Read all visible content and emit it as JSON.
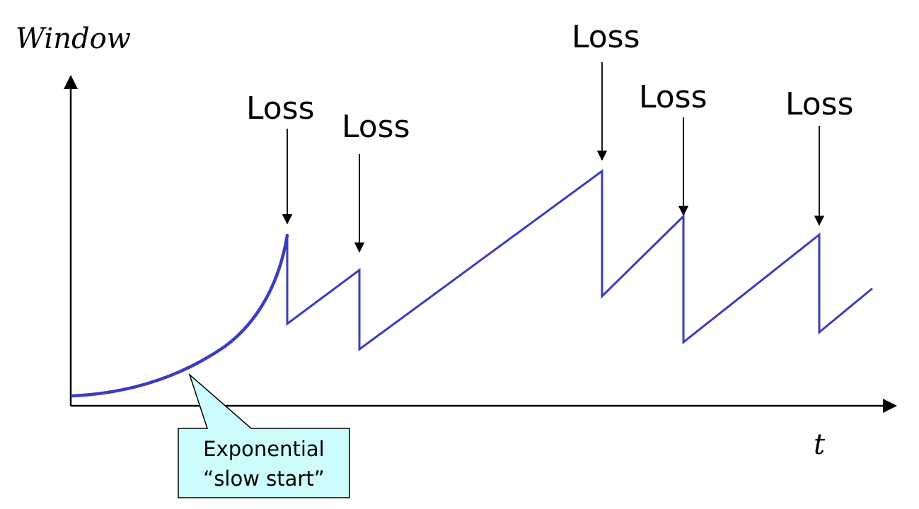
{
  "diagram": {
    "y_axis_label": "Window",
    "x_axis_label": "t",
    "loss_events": [
      {
        "label": "Loss"
      },
      {
        "label": "Loss"
      },
      {
        "label": "Loss"
      },
      {
        "label": "Loss"
      },
      {
        "label": "Loss"
      }
    ],
    "callout": {
      "line1": "Exponential",
      "line2": "“slow start”"
    },
    "colors": {
      "curve": "#3b3dbf",
      "axis": "#000000",
      "callout_fill": "#ccfcfc",
      "callout_stroke": "#000000"
    }
  }
}
